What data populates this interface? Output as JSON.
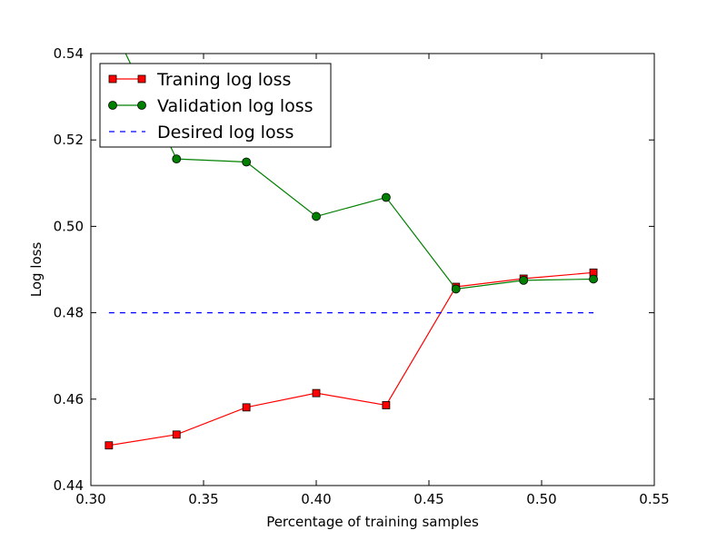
{
  "chart_data": {
    "type": "line",
    "xlabel": "Percentage of training samples",
    "ylabel": "Log loss",
    "xlim": [
      0.3,
      0.55
    ],
    "ylim": [
      0.44,
      0.54
    ],
    "xticks": [
      "0.30",
      "0.35",
      "0.40",
      "0.45",
      "0.50",
      "0.55"
    ],
    "yticks": [
      "0.44",
      "0.46",
      "0.48",
      "0.50",
      "0.52",
      "0.54"
    ],
    "grid": false,
    "legend_position": "top-left",
    "series": [
      {
        "name": "Traning log loss",
        "color": "#ff0000",
        "marker": "square",
        "line": "solid",
        "x": [
          0.308,
          0.338,
          0.369,
          0.4,
          0.431,
          0.462,
          0.492,
          0.523
        ],
        "y": [
          0.4493,
          0.4518,
          0.4581,
          0.4614,
          0.4586,
          0.486,
          0.4879,
          0.4893
        ]
      },
      {
        "name": "Validation log loss",
        "color": "#008000",
        "marker": "circle",
        "line": "solid",
        "x": [
          0.308,
          0.338,
          0.369,
          0.4,
          0.431,
          0.462,
          0.492,
          0.523
        ],
        "y": [
          0.548,
          0.5156,
          0.5149,
          0.5023,
          0.5067,
          0.4855,
          0.4875,
          0.4878
        ]
      },
      {
        "name": "Desired log loss",
        "color": "#0000ff",
        "marker": "none",
        "line": "dashed",
        "x": [
          0.308,
          0.523
        ],
        "y": [
          0.48,
          0.48
        ]
      }
    ]
  }
}
